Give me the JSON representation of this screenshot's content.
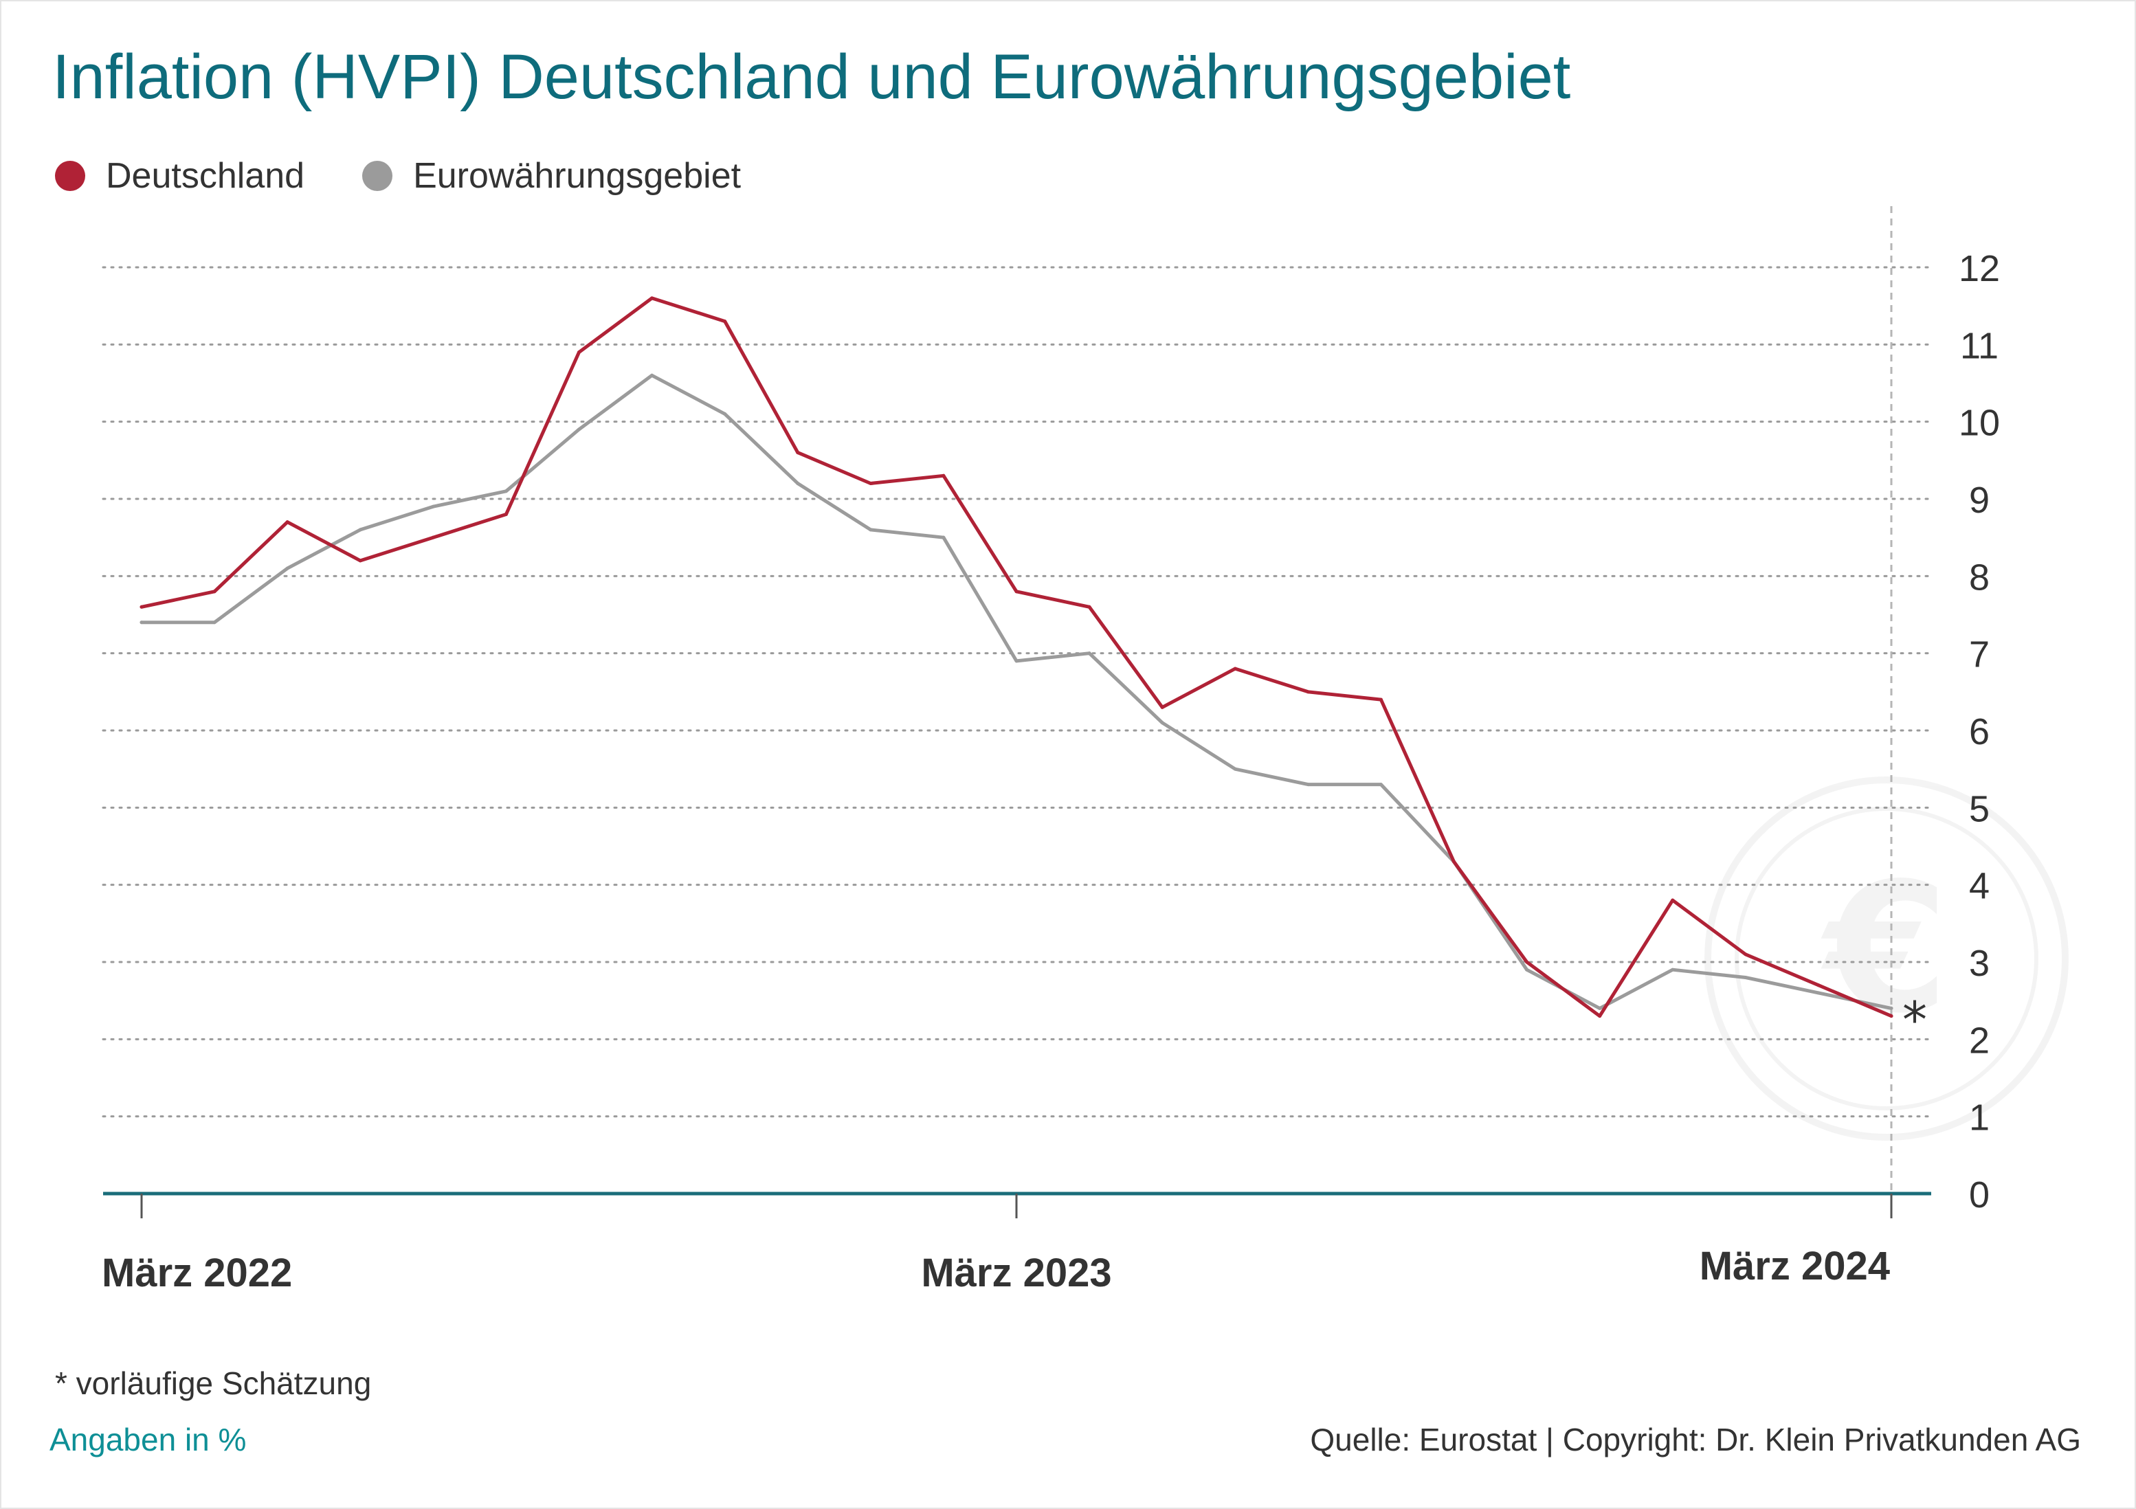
{
  "title": "Inflation (HVPI) Deutschland und Eurowährungsgebiet",
  "footnote": "*  vorläufige Schätzung",
  "units_note": "Angaben in %",
  "source": "Quelle: Eurostat | Copyright: Dr. Klein Privatkunden AG",
  "estimate_marker": "*",
  "colors": {
    "title": "#0e6c7c",
    "deutschland": "#b02236",
    "euro": "#9b9b9b",
    "axis": "#1a6d7a",
    "grid": "#9a9a9a"
  },
  "chart_data": {
    "type": "line",
    "title": "Inflation (HVPI) Deutschland und Eurowährungsgebiet",
    "xlabel": "",
    "ylabel": "",
    "ylim": [
      0,
      12
    ],
    "yticks": [
      0,
      1,
      2,
      3,
      4,
      5,
      6,
      7,
      8,
      9,
      10,
      11,
      12
    ],
    "grid": true,
    "legend_position": "top-left",
    "x": [
      "2022-03",
      "2022-04",
      "2022-05",
      "2022-06",
      "2022-07",
      "2022-08",
      "2022-09",
      "2022-10",
      "2022-11",
      "2022-12",
      "2023-01",
      "2023-02",
      "2023-03",
      "2023-04",
      "2023-05",
      "2023-06",
      "2023-07",
      "2023-08",
      "2023-09",
      "2023-10",
      "2023-11",
      "2023-12",
      "2024-01",
      "2024-02",
      "2024-03"
    ],
    "xtick_labels": [
      {
        "x": "2022-03",
        "label": "März 2022"
      },
      {
        "x": "2023-03",
        "label": "März 2023"
      },
      {
        "x": "2024-03",
        "label": "März 2024"
      }
    ],
    "series": [
      {
        "name": "Deutschland",
        "color": "#b02236",
        "values": [
          7.6,
          7.8,
          8.7,
          8.2,
          8.5,
          8.8,
          10.9,
          11.6,
          11.3,
          9.6,
          9.2,
          9.3,
          7.8,
          7.6,
          6.3,
          6.8,
          6.5,
          6.4,
          4.3,
          3.0,
          2.3,
          3.8,
          3.1,
          2.7,
          2.3
        ]
      },
      {
        "name": "Eurowährungsgebiet",
        "color": "#9b9b9b",
        "values": [
          7.4,
          7.4,
          8.1,
          8.6,
          8.9,
          9.1,
          9.9,
          10.6,
          10.1,
          9.2,
          8.6,
          8.5,
          6.9,
          7.0,
          6.1,
          5.5,
          5.3,
          5.3,
          4.3,
          2.9,
          2.4,
          2.9,
          2.8,
          2.6,
          2.4
        ]
      }
    ],
    "annotation": "*"
  }
}
